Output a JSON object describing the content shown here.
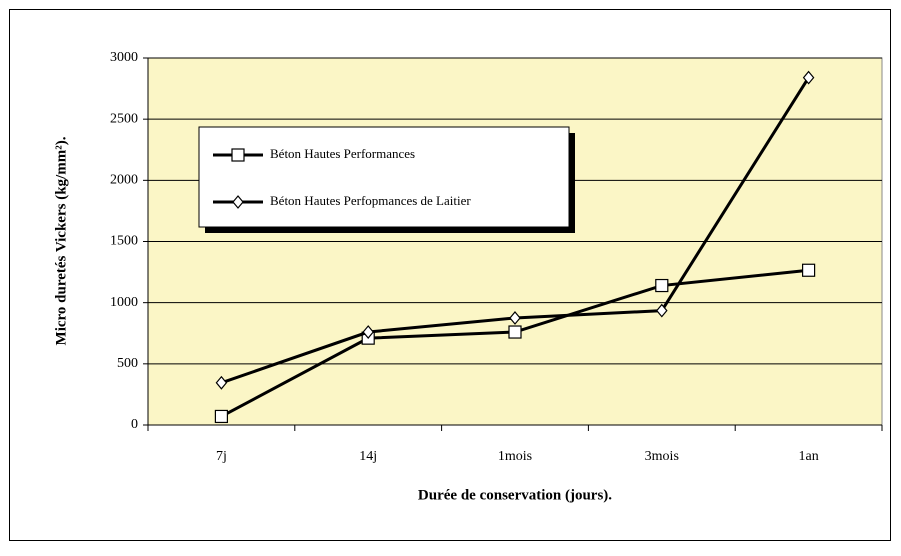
{
  "chart_data": {
    "type": "line",
    "x_label": "Durée de conservation (jours).",
    "y_label": "Micro duretés Vickers (kg/mm²).",
    "categories": [
      "7j",
      "14j",
      "1mois",
      "3mois",
      "1an"
    ],
    "series": [
      {
        "name": "Béton Hautes Performances",
        "color": "#000000",
        "marker": "square",
        "values": [
          70,
          710,
          760,
          1140,
          1265
        ]
      },
      {
        "name": "Béton Hautes Perfopmances de Laitier",
        "color": "#000000",
        "marker": "diamond",
        "values": [
          345,
          760,
          875,
          935,
          2840
        ]
      }
    ],
    "ylim": [
      0,
      3000
    ],
    "yticks": [
      0,
      500,
      1000,
      1500,
      2000,
      2500,
      3000
    ],
    "grid": true
  }
}
